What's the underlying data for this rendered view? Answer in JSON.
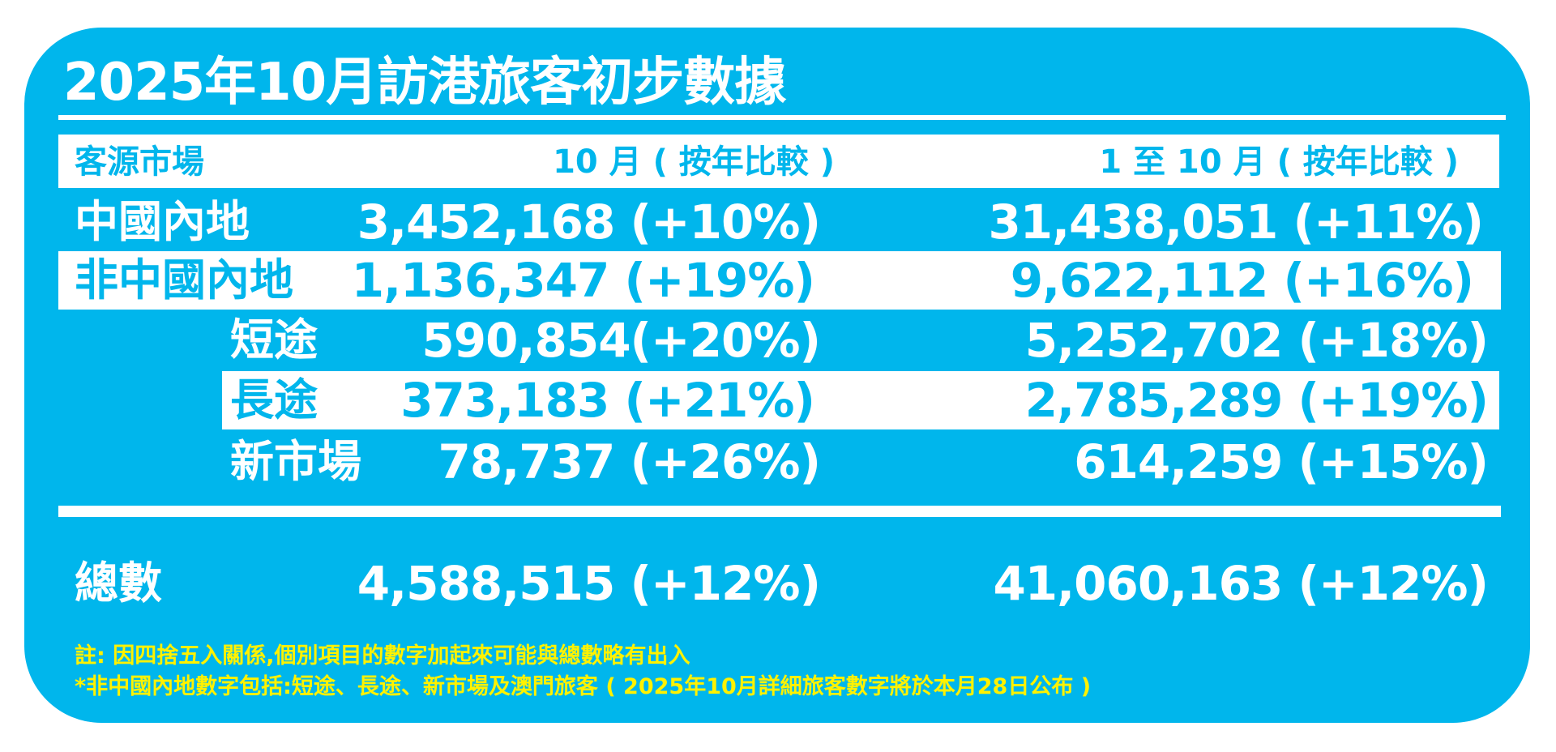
{
  "title": "2025年10月訪港旅客初步數據",
  "header": {
    "market": "客源市場",
    "october": "10 月 ( 按年比較 )",
    "ytd": "1 至 10 月 ( 按年比較 )"
  },
  "rows": [
    {
      "label": "中國內地",
      "oct": "3,452,168 (+10%)",
      "ytd": "31,438,051 (+11%)"
    },
    {
      "label": "非中國內地",
      "oct": "1,136,347 (+19%)",
      "ytd": "9,622,112 (+16%)"
    },
    {
      "label": "短途",
      "oct": "590,854(+20%)",
      "ytd": "5,252,702 (+18%)"
    },
    {
      "label": "長途",
      "oct": "373,183 (+21%)",
      "ytd": "2,785,289 (+19%)"
    },
    {
      "label": "新市場",
      "oct": "78,737 (+26%)",
      "ytd": "614,259 (+15%)"
    }
  ],
  "total": {
    "label": "總數",
    "oct": "4,588,515 (+12%)",
    "ytd": "41,060,163 (+12%)"
  },
  "notes": [
    "註:  因四捨五入關係,個別項目的數字加起來可能與總數略有出入",
    "*非中國內地數字包括:短途、長途、新市場及澳門旅客 ( 2025年10月詳細旅客數字將於本月28日公布 )"
  ],
  "colors": {
    "background": "#00b6ec",
    "text": "#ffffff",
    "note": "#fff200"
  }
}
